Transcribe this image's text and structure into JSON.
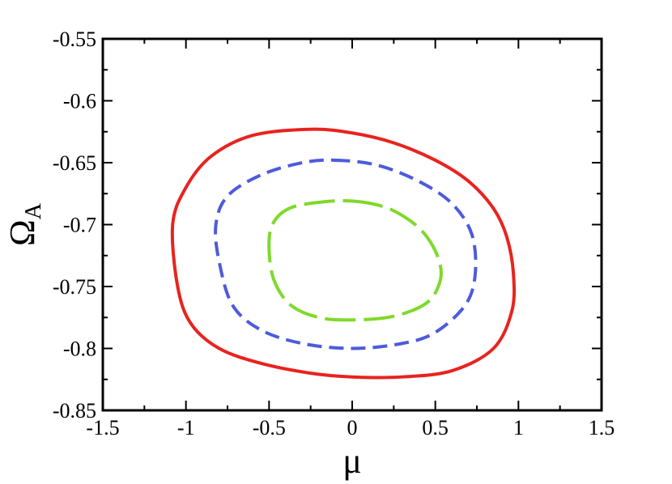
{
  "chart_data": {
    "type": "line",
    "title": "",
    "xlabel": "μ",
    "ylabel": "Ω",
    "ylabel_subscript": "A",
    "xlim": [
      -1.5,
      1.5
    ],
    "ylim": [
      -0.85,
      -0.55
    ],
    "xticks": [
      "-1.5",
      "-1",
      "-0.5",
      "0",
      "0.5",
      "1",
      "1.5"
    ],
    "yticks": [
      "-0.55",
      "-0.6",
      "-0.65",
      "-0.7",
      "-0.75",
      "-0.8",
      "-0.85"
    ],
    "xtick_values": [
      -1.5,
      -1,
      -0.5,
      0,
      0.5,
      1,
      1.5
    ],
    "ytick_values": [
      -0.55,
      -0.6,
      -0.65,
      -0.7,
      -0.75,
      -0.8,
      -0.85
    ],
    "grid": false,
    "legend": "none",
    "series": [
      {
        "color": "#e8231f",
        "style": "solid",
        "points": [
          [
            -0.25,
            -0.623
          ],
          [
            0.0,
            -0.626
          ],
          [
            0.25,
            -0.634
          ],
          [
            0.5,
            -0.648
          ],
          [
            0.7,
            -0.665
          ],
          [
            0.85,
            -0.687
          ],
          [
            0.93,
            -0.71
          ],
          [
            0.97,
            -0.74
          ],
          [
            0.96,
            -0.77
          ],
          [
            0.85,
            -0.8
          ],
          [
            0.6,
            -0.818
          ],
          [
            0.3,
            -0.823
          ],
          [
            0.0,
            -0.823
          ],
          [
            -0.25,
            -0.82
          ],
          [
            -0.55,
            -0.812
          ],
          [
            -0.8,
            -0.8
          ],
          [
            -0.97,
            -0.78
          ],
          [
            -1.05,
            -0.75
          ],
          [
            -1.08,
            -0.7
          ],
          [
            -1.0,
            -0.67
          ],
          [
            -0.85,
            -0.645
          ],
          [
            -0.6,
            -0.628
          ],
          [
            -0.25,
            -0.623
          ]
        ]
      },
      {
        "color": "#4d5bdb",
        "style": "dashed",
        "points": [
          [
            -0.1,
            -0.648
          ],
          [
            0.15,
            -0.652
          ],
          [
            0.4,
            -0.665
          ],
          [
            0.6,
            -0.683
          ],
          [
            0.72,
            -0.708
          ],
          [
            0.74,
            -0.74
          ],
          [
            0.68,
            -0.765
          ],
          [
            0.5,
            -0.787
          ],
          [
            0.3,
            -0.796
          ],
          [
            0.0,
            -0.8
          ],
          [
            -0.3,
            -0.796
          ],
          [
            -0.55,
            -0.785
          ],
          [
            -0.72,
            -0.765
          ],
          [
            -0.8,
            -0.73
          ],
          [
            -0.82,
            -0.7
          ],
          [
            -0.75,
            -0.677
          ],
          [
            -0.55,
            -0.66
          ],
          [
            -0.3,
            -0.65
          ],
          [
            -0.1,
            -0.648
          ]
        ]
      },
      {
        "color": "#7fd92b",
        "style": "longdash",
        "points": [
          [
            0.0,
            -0.681
          ],
          [
            0.2,
            -0.686
          ],
          [
            0.35,
            -0.697
          ],
          [
            0.45,
            -0.71
          ],
          [
            0.52,
            -0.728
          ],
          [
            0.53,
            -0.745
          ],
          [
            0.45,
            -0.763
          ],
          [
            0.25,
            -0.774
          ],
          [
            0.0,
            -0.777
          ],
          [
            -0.2,
            -0.775
          ],
          [
            -0.37,
            -0.765
          ],
          [
            -0.47,
            -0.745
          ],
          [
            -0.5,
            -0.72
          ],
          [
            -0.48,
            -0.7
          ],
          [
            -0.38,
            -0.687
          ],
          [
            -0.2,
            -0.682
          ],
          [
            0.0,
            -0.681
          ]
        ]
      }
    ]
  }
}
